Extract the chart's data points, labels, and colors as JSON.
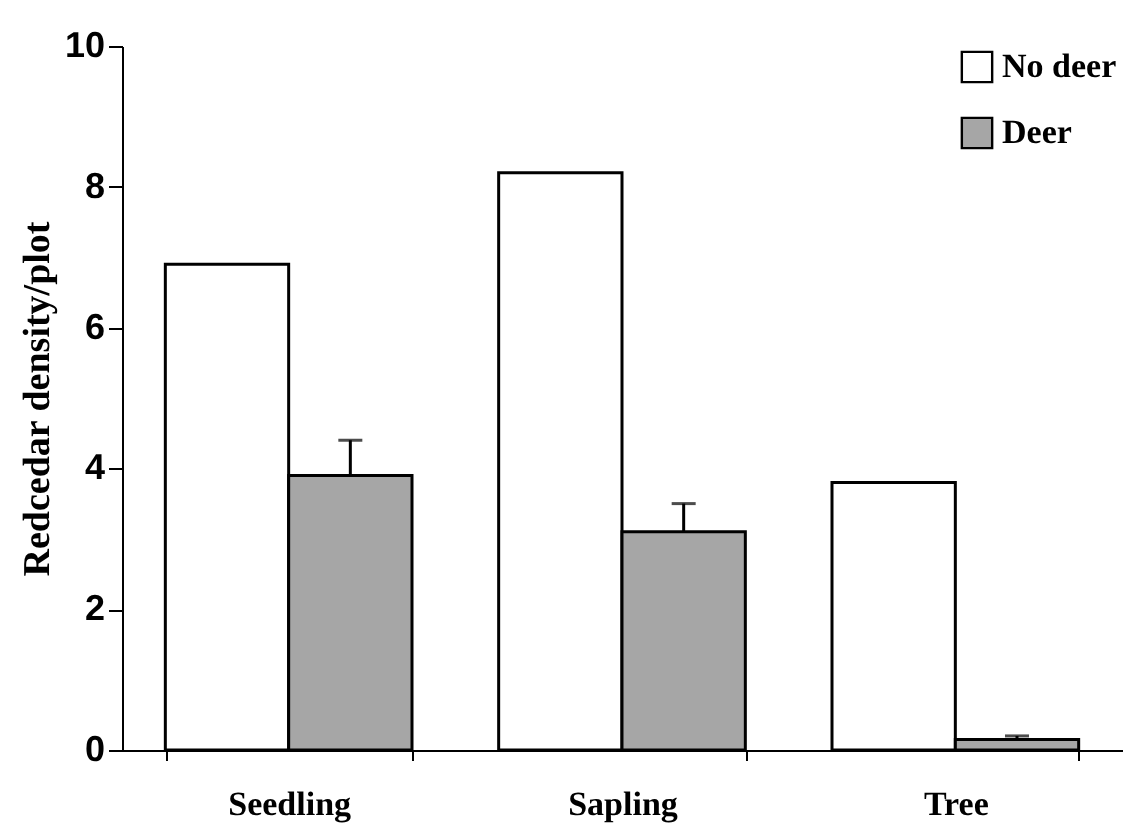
{
  "chart_data": {
    "type": "bar",
    "ylabel": "Redcedar density/plot",
    "categories": [
      "Seedling",
      "Sapling",
      "Tree"
    ],
    "series": [
      {
        "name": "No deer",
        "color": "#ffffff",
        "values": [
          6.9,
          8.2,
          3.8
        ]
      },
      {
        "name": "Deer",
        "color": "#a6a6a6",
        "values": [
          3.9,
          3.1,
          0.15
        ],
        "errors": [
          [
            3.9,
            4.4
          ],
          [
            3.1,
            3.5
          ],
          [
            0.15,
            0.2
          ]
        ]
      }
    ],
    "ylim": [
      0,
      10
    ],
    "yticks": [
      0,
      2,
      4,
      6,
      8,
      10
    ],
    "grid": false,
    "legend": "top right"
  }
}
